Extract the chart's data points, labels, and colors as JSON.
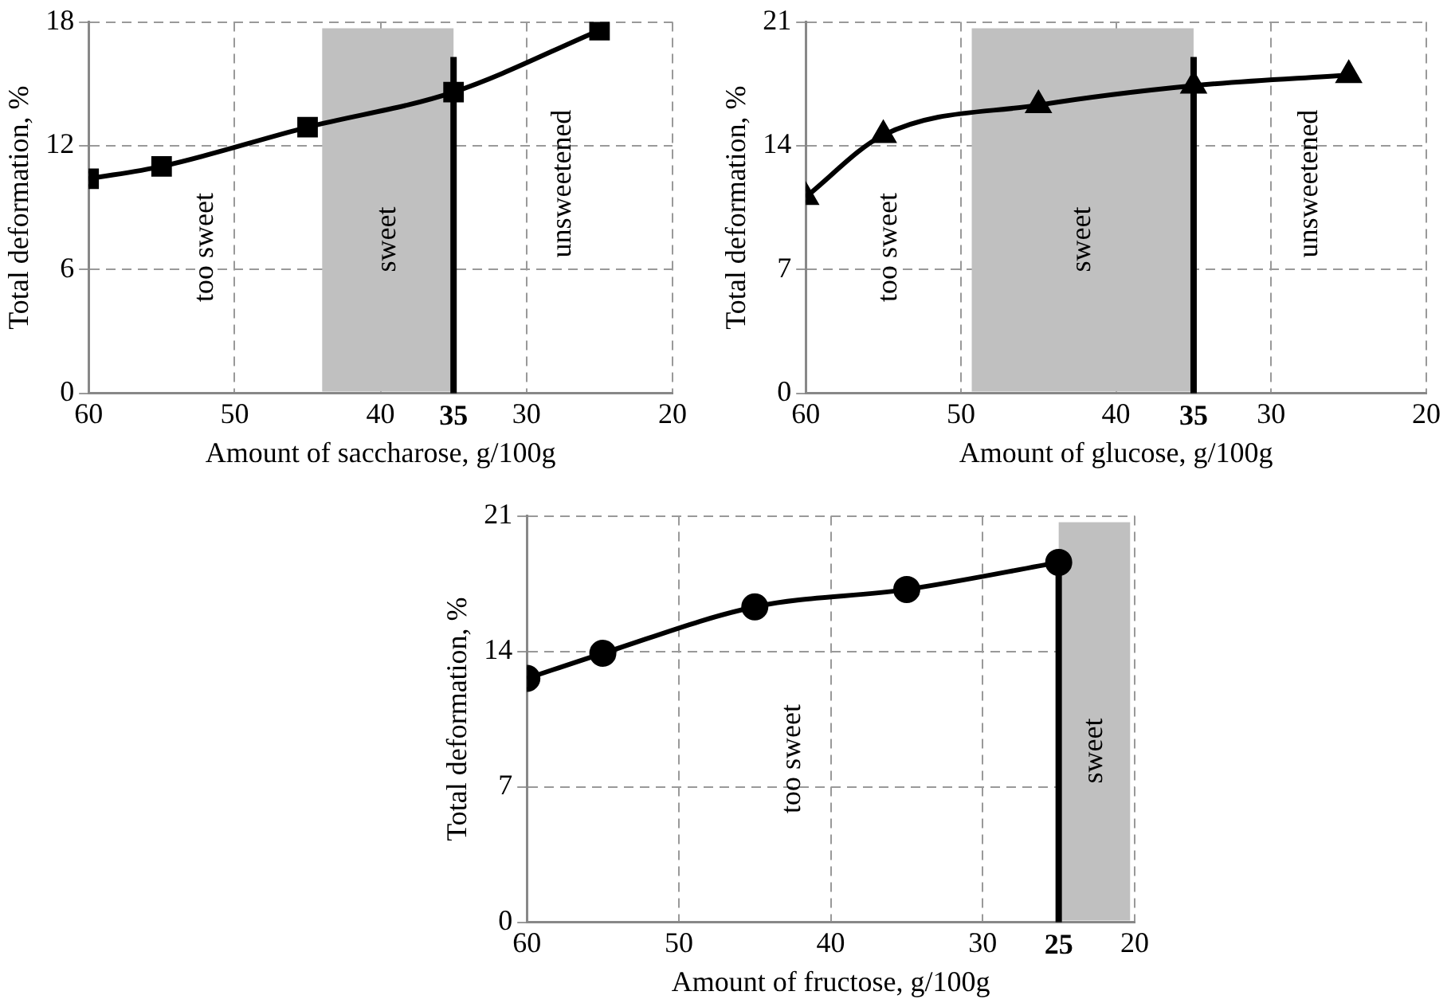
{
  "chart_data": [
    {
      "type": "line",
      "xlabel": "Amount of saccharose, g/100g",
      "ylabel": "Total deformation, %",
      "x": [
        60,
        55,
        45,
        35,
        25
      ],
      "series": [
        {
          "color": "#000000",
          "values": [
            10.4,
            11.0,
            12.9,
            14.6,
            17.6
          ]
        }
      ],
      "xlim": [
        60,
        20
      ],
      "xticks": [
        60,
        50,
        40,
        30,
        20
      ],
      "ylim": [
        0,
        18
      ],
      "yticks": [
        0,
        6,
        12,
        18
      ],
      "grid": true,
      "marker": "square",
      "bands": [
        {
          "axis": "x",
          "from": 44,
          "to": 35,
          "label": "sweet",
          "color": "#c0c0c0"
        }
      ],
      "ref_lines": [
        {
          "axis": "x",
          "value": 35,
          "label": "35",
          "color": "#000000"
        }
      ],
      "annotations": [
        "too sweet",
        "unsweetened"
      ]
    },
    {
      "type": "line",
      "xlabel": "Amount of glucose, g/100g",
      "ylabel": "Total deformation, %",
      "x": [
        60,
        55,
        45,
        35,
        25
      ],
      "series": [
        {
          "color": "#000000",
          "values": [
            11.1,
            14.6,
            16.3,
            17.4,
            18.0
          ]
        }
      ],
      "xlim": [
        60,
        20
      ],
      "xticks": [
        60,
        50,
        40,
        30,
        20
      ],
      "ylim": [
        0,
        21
      ],
      "yticks": [
        0,
        7,
        14,
        21
      ],
      "grid": true,
      "marker": "triangle",
      "bands": [
        {
          "axis": "x",
          "from": 49.3,
          "to": 35,
          "label": "sweet",
          "color": "#c0c0c0"
        }
      ],
      "ref_lines": [
        {
          "axis": "x",
          "value": 35,
          "label": "35",
          "color": "#000000"
        }
      ],
      "annotations": [
        "too sweet",
        "unsweetened"
      ]
    },
    {
      "type": "line",
      "xlabel": "Amount of fructose, g/100g",
      "ylabel": "Total deformation, %",
      "x": [
        60,
        55,
        45,
        35,
        25
      ],
      "series": [
        {
          "color": "#000000",
          "values": [
            12.6,
            13.9,
            16.3,
            17.2,
            18.6
          ]
        }
      ],
      "xlim": [
        60,
        20
      ],
      "xticks": [
        60,
        50,
        40,
        30,
        20
      ],
      "ylim": [
        0,
        21
      ],
      "yticks": [
        0,
        7,
        14,
        21
      ],
      "grid": true,
      "marker": "circle",
      "bands": [
        {
          "axis": "x",
          "from": 25,
          "to": 20.3,
          "label": "sweet",
          "color": "#c0c0c0"
        }
      ],
      "ref_lines": [
        {
          "axis": "x",
          "value": 25,
          "label": "25",
          "color": "#000000"
        }
      ],
      "annotations": [
        "too sweet"
      ]
    }
  ]
}
